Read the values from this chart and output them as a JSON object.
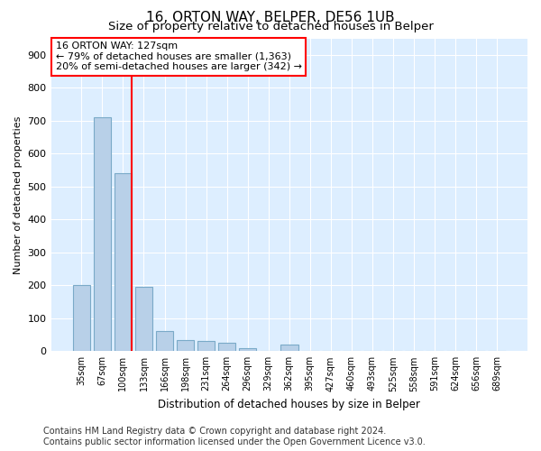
{
  "title": "16, ORTON WAY, BELPER, DE56 1UB",
  "subtitle": "Size of property relative to detached houses in Belper",
  "xlabel": "Distribution of detached houses by size in Belper",
  "ylabel": "Number of detached properties",
  "categories": [
    "35sqm",
    "67sqm",
    "100sqm",
    "133sqm",
    "166sqm",
    "198sqm",
    "231sqm",
    "264sqm",
    "296sqm",
    "329sqm",
    "362sqm",
    "395sqm",
    "427sqm",
    "460sqm",
    "493sqm",
    "525sqm",
    "558sqm",
    "591sqm",
    "624sqm",
    "656sqm",
    "689sqm"
  ],
  "values": [
    200,
    710,
    540,
    195,
    60,
    35,
    30,
    25,
    10,
    0,
    20,
    0,
    0,
    0,
    0,
    0,
    0,
    0,
    0,
    0,
    0
  ],
  "bar_color": "#b8d0e8",
  "bar_edge_color": "#7aaac8",
  "vline_color": "red",
  "annotation_line1": "16 ORTON WAY: 127sqm",
  "annotation_line2": "← 79% of detached houses are smaller (1,363)",
  "annotation_line3": "20% of semi-detached houses are larger (342) →",
  "annotation_box_color": "white",
  "annotation_box_edge_color": "red",
  "ylim": [
    0,
    950
  ],
  "yticks": [
    0,
    100,
    200,
    300,
    400,
    500,
    600,
    700,
    800,
    900
  ],
  "background_color": "#ddeeff",
  "footer": "Contains HM Land Registry data © Crown copyright and database right 2024.\nContains public sector information licensed under the Open Government Licence v3.0.",
  "title_fontsize": 11,
  "subtitle_fontsize": 9.5,
  "annotation_fontsize": 8,
  "footer_fontsize": 7,
  "ylabel_fontsize": 8,
  "xlabel_fontsize": 8.5
}
